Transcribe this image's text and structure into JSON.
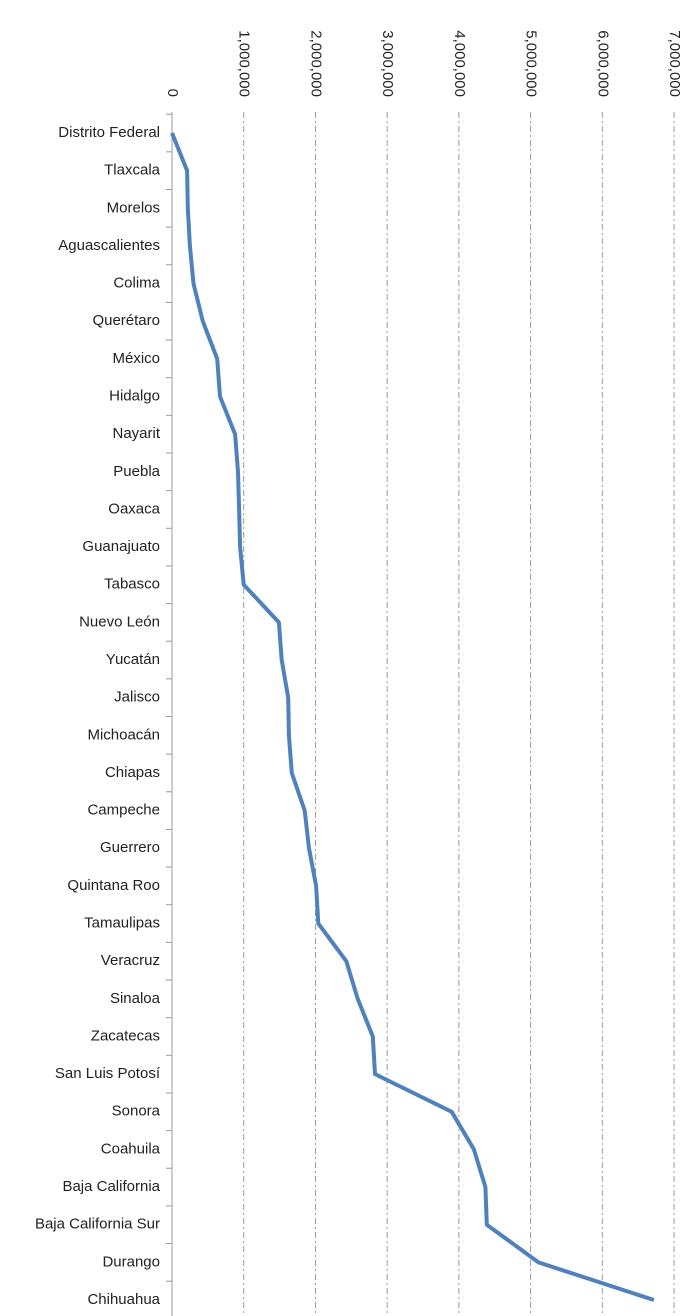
{
  "chart_data": {
    "type": "line",
    "categories": [
      "Distrito Federal",
      "Tlaxcala",
      "Morelos",
      "Aguascalientes",
      "Colima",
      "Querétaro",
      "México",
      "Hidalgo",
      "Nayarit",
      "Puebla",
      "Oaxaca",
      "Guanajuato",
      "Tabasco",
      "Nuevo León",
      "Yucatán",
      "Jalisco",
      "Michoacán",
      "Chiapas",
      "Campeche",
      "Guerrero",
      "Quintana Roo",
      "Tamaulipas",
      "Veracruz",
      "Sinaloa",
      "Zacatecas",
      "San Luis Potosí",
      "Sonora",
      "Coahuila",
      "Baja California",
      "Baja California Sur",
      "Durango",
      "Chihuahua"
    ],
    "values": [
      0,
      210000,
      220000,
      250000,
      300000,
      430000,
      630000,
      670000,
      880000,
      920000,
      935000,
      950000,
      1000000,
      1490000,
      1530000,
      1620000,
      1630000,
      1670000,
      1850000,
      1910000,
      2010000,
      2040000,
      2430000,
      2590000,
      2800000,
      2830000,
      3900000,
      4210000,
      4370000,
      4390000,
      5110000,
      6720000
    ],
    "color": "#4f81bd",
    "xlim": [
      0,
      7000000
    ],
    "xticks": [
      0,
      {
        "value": 1000000,
        "label": "1,000,000"
      },
      {
        "value": 2000000,
        "label": "2,000,000"
      },
      {
        "value": 3000000,
        "label": "3,000,000"
      },
      {
        "value": 4000000,
        "label": "4,000,000"
      },
      {
        "value": 5000000,
        "label": "5,000,000"
      },
      {
        "value": 6000000,
        "label": "6,000,000"
      },
      {
        "value": 7000000,
        "label": "7,000,000"
      }
    ],
    "grid": true
  }
}
